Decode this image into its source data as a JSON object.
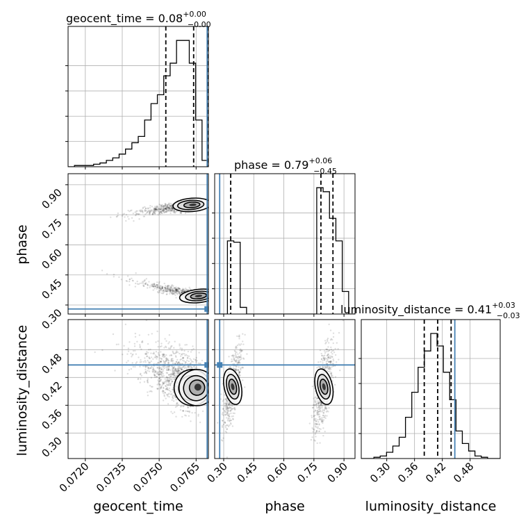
{
  "colors": {
    "truth": "#4682b4",
    "hist": "#000000",
    "grid": "#b0b0b0",
    "quantile": "#000000",
    "scatter": "#000000"
  },
  "chart_data": {
    "type": "corner",
    "parameters": [
      "geocent_time",
      "phase",
      "luminosity_distance"
    ],
    "titles": [
      {
        "name": "geocent_time",
        "median": "0.08",
        "plus": "+0.00",
        "minus": "−0.00"
      },
      {
        "name": "phase",
        "median": "0.79",
        "plus": "+0.06",
        "minus": "−0.45"
      },
      {
        "name": "luminosity_distance",
        "median": "0.41",
        "plus": "+0.03",
        "minus": "−0.03"
      }
    ],
    "ranges": {
      "geocent_time": [
        0.0713,
        0.077
      ],
      "phase": [
        0.255,
        0.955
      ],
      "luminosity_distance": [
        0.245,
        0.545
      ]
    },
    "ticks": {
      "geocent_time": [
        "0.0720",
        "0.0735",
        "0.0750",
        "0.0765"
      ],
      "phase": [
        "0.30",
        "0.45",
        "0.60",
        "0.75",
        "0.90"
      ],
      "luminosity_distance": [
        "0.30",
        "0.36",
        "0.42",
        "0.48"
      ]
    },
    "truths": {
      "geocent_time": 0.07695,
      "phase": 0.28,
      "luminosity_distance": 0.447
    },
    "quantiles": {
      "geocent_time": [
        0.07527,
        0.0764,
        0.07698
      ],
      "phase": [
        0.335,
        0.785,
        0.845
      ],
      "luminosity_distance": [
        0.381,
        0.41,
        0.439
      ]
    },
    "histograms": {
      "geocent_time": {
        "edges_start": 0.0713,
        "edges_end": 0.077,
        "counts": [
          0,
          1,
          1,
          1,
          2,
          3,
          5,
          7,
          10,
          14,
          19,
          24,
          37,
          50,
          57,
          72,
          82,
          100,
          100,
          82,
          37,
          5
        ]
      },
      "phase": {
        "edges_start": 0.255,
        "edges_end": 0.955,
        "counts": [
          0,
          0,
          55,
          54,
          5,
          0,
          0,
          0,
          0,
          0,
          0,
          0,
          0,
          0,
          0,
          0,
          95,
          92,
          72,
          55,
          17,
          0
        ]
      },
      "luminosity_distance": {
        "edges_start": 0.245,
        "edges_end": 0.545,
        "counts": [
          0,
          0,
          1,
          2,
          5,
          10,
          17,
          33,
          53,
          73,
          86,
          100,
          90,
          69,
          47,
          22,
          12,
          6,
          2,
          1,
          0,
          0
        ]
      }
    },
    "modes_2d": [
      {
        "geocent_time": 0.0764,
        "phase": 0.8,
        "luminosity_distance": 0.4,
        "weight": 0.55
      },
      {
        "geocent_time": 0.0766,
        "phase": 0.345,
        "luminosity_distance": 0.4,
        "weight": 0.45
      }
    ],
    "grid": true
  }
}
